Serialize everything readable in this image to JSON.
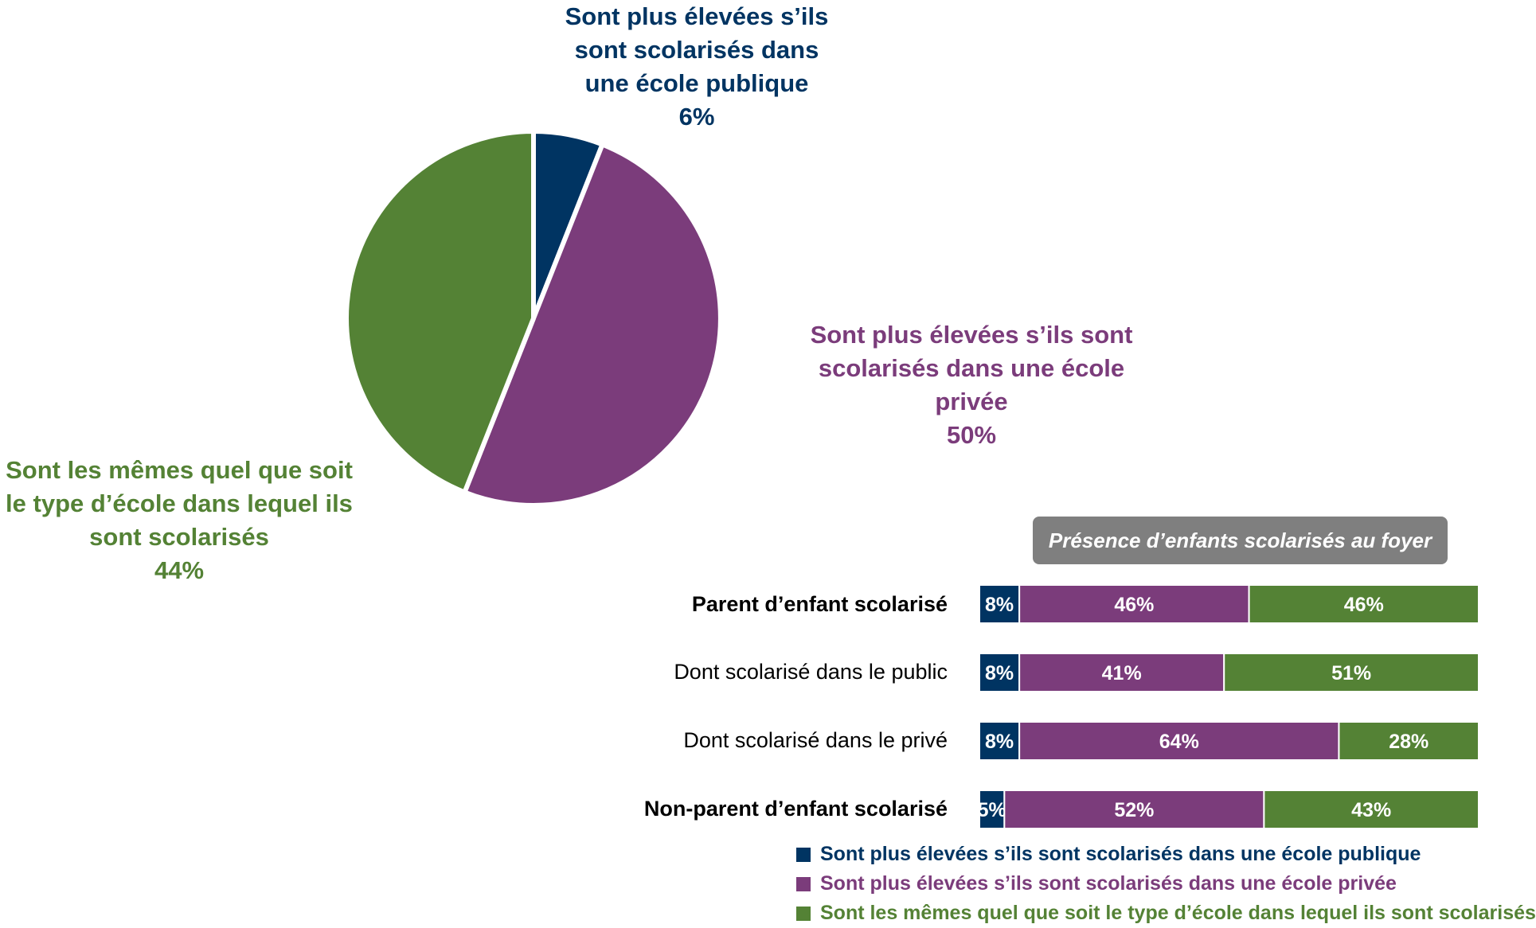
{
  "colors": {
    "public": "#003462",
    "private": "#7B3C7B",
    "same": "#548235",
    "header_bg": "#7f7f7f"
  },
  "chart_data": [
    {
      "type": "pie",
      "slices": [
        {
          "label_lines": [
            "Sont plus élevées s’ils",
            "sont scolarisés dans",
            "une école publique"
          ],
          "value": 6,
          "value_label": "6%",
          "color": "#003462"
        },
        {
          "label_lines": [
            "Sont plus élevées s’ils sont",
            "scolarisés dans une école privée"
          ],
          "value": 50,
          "value_label": "50%",
          "color": "#7B3C7B"
        },
        {
          "label_lines": [
            "Sont les mêmes quel que soit",
            "le type d’école dans lequel ils",
            "sont scolarisés"
          ],
          "value": 44,
          "value_label": "44%",
          "color": "#548235"
        }
      ]
    },
    {
      "type": "bar",
      "orientation": "horizontal",
      "stacked": true,
      "section_header": "Présence d’enfants scolarisés au foyer",
      "categories": [
        "Parent d’enfant scolarisé",
        "Dont scolarisé dans le public",
        "Dont scolarisé dans le privé",
        "Non-parent d’enfant scolarisé"
      ],
      "category_bold": [
        true,
        false,
        false,
        true
      ],
      "series": [
        {
          "name": "Sont plus élevées s’ils sont scolarisés dans une école publique",
          "values": [
            8,
            8,
            8,
            5
          ],
          "value_labels": [
            "8%",
            "8%",
            "8%",
            "5%"
          ],
          "color": "#003462"
        },
        {
          "name": "Sont plus élevées s’ils sont scolarisés dans une école privée",
          "values": [
            46,
            41,
            64,
            52
          ],
          "value_labels": [
            "46%",
            "41%",
            "64%",
            "52%"
          ],
          "color": "#7B3C7B"
        },
        {
          "name": "Sont les mêmes quel que soit le type d’école dans lequel ils sont scolarisés",
          "values": [
            46,
            51,
            28,
            43
          ],
          "value_labels": [
            "46%",
            "51%",
            "28%",
            "43%"
          ],
          "color": "#548235"
        }
      ],
      "xlim": [
        0,
        100
      ]
    }
  ]
}
